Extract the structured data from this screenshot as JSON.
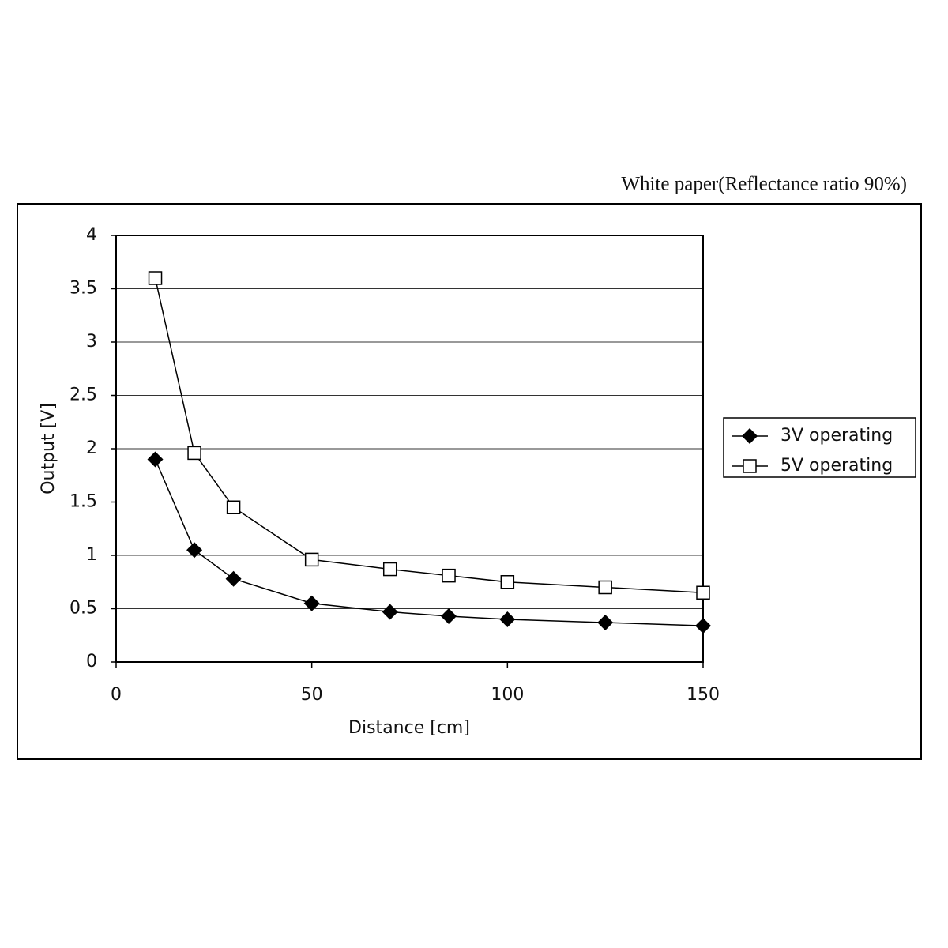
{
  "chart_data": {
    "type": "line",
    "subtitle": "White paper(Reflectance ratio 90%)",
    "x_label": "Distance [cm]",
    "y_label": "Output [V]",
    "xlim": [
      0,
      150
    ],
    "xticks": [
      0,
      50,
      100,
      150
    ],
    "ylim": [
      0,
      4
    ],
    "yticks": [
      0,
      0.5,
      1,
      1.5,
      2,
      2.5,
      3,
      3.5,
      4
    ],
    "grid": true,
    "legend": "right",
    "x": [
      10,
      20,
      30,
      50,
      70,
      85,
      100,
      125,
      150
    ],
    "series": [
      {
        "name": "3V operating",
        "color": "#000000",
        "marker": "diamond",
        "values": [
          1.9,
          1.05,
          0.78,
          0.55,
          0.47,
          0.43,
          0.4,
          0.37,
          0.34
        ]
      },
      {
        "name": "5V operating",
        "color": "#000000",
        "marker": "square-open",
        "values": [
          3.6,
          1.96,
          1.45,
          0.96,
          0.87,
          0.81,
          0.75,
          0.7,
          0.65
        ]
      }
    ]
  }
}
